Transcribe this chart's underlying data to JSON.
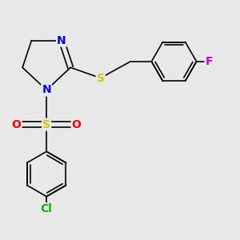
{
  "bg_color": "#e8e8e8",
  "bond_color": "#000000",
  "bond_width": 1.2,
  "figsize": [
    3.0,
    3.0
  ],
  "dpi": 100,
  "xlim": [
    0.5,
    8.5
  ],
  "ylim": [
    0.8,
    8.8
  ],
  "colors": {
    "N": "#0000ff",
    "S": "#cccc00",
    "O": "#ff0000",
    "Cl": "#00bb00",
    "F": "#cc00cc",
    "bond": "#000000"
  }
}
